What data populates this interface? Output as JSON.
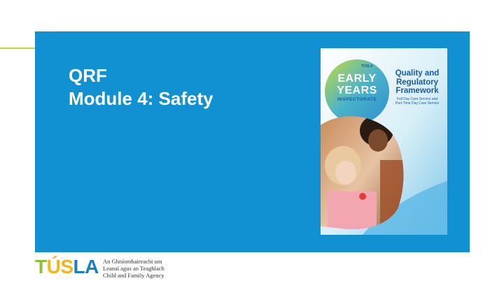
{
  "slide": {
    "title_line1": "QRF",
    "title_line2": "Module 4: Safety"
  },
  "cover": {
    "badge_title_line1": "EARLY",
    "badge_title_line2": "YEARS",
    "badge_subtitle": "INSPECTORATE",
    "mini_logo": "TÚSLA",
    "doc_title_line1": "Quality and",
    "doc_title_line2": "Regulatory",
    "doc_title_line3": "Framework",
    "doc_subtitle_line1": "Full Day Care Service and",
    "doc_subtitle_line2": "Part-Time Day Care Service"
  },
  "footer": {
    "logo_letters": [
      "T",
      "Ú",
      "S",
      "L",
      "A"
    ],
    "logo_colors": [
      "#8ebf3f",
      "#f2b51d",
      "#f2b51d",
      "#1a7fc1",
      "#1a7fc1"
    ],
    "agency_line1": "An Ghníomhaireacht um",
    "agency_line2": "Leanaí agus an Teaghlach",
    "agency_line3": "Child and Family Agency"
  }
}
